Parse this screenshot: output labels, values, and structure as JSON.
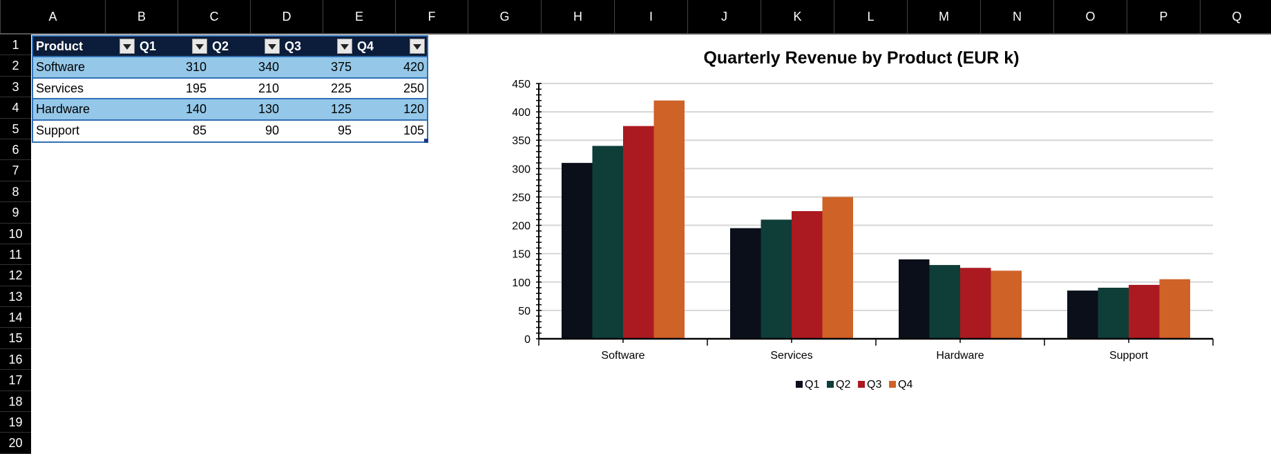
{
  "columns": [
    "A",
    "B",
    "C",
    "D",
    "E",
    "F",
    "G",
    "H",
    "I",
    "J",
    "K",
    "L",
    "M",
    "N",
    "O",
    "P",
    "Q"
  ],
  "rows": [
    "1",
    "2",
    "3",
    "4",
    "5",
    "6",
    "7",
    "8",
    "9",
    "10",
    "11",
    "12",
    "13",
    "14",
    "15",
    "16",
    "17",
    "18",
    "19",
    "20"
  ],
  "table": {
    "headers": [
      "Product",
      "Q1",
      "Q2",
      "Q3",
      "Q4"
    ],
    "rows": [
      [
        "Software",
        "310",
        "340",
        "375",
        "420"
      ],
      [
        "Services",
        "195",
        "210",
        "225",
        "250"
      ],
      [
        "Hardware",
        "140",
        "130",
        "125",
        "120"
      ],
      [
        "Support",
        "85",
        "90",
        "95",
        "105"
      ]
    ],
    "header_color": "#0b1d3a",
    "band_color": "#95c8e8"
  },
  "chart_data": {
    "type": "bar",
    "title": "Quarterly Revenue by Product (EUR k)",
    "categories": [
      "Software",
      "Services",
      "Hardware",
      "Support"
    ],
    "series": [
      {
        "name": "Q1",
        "values": [
          310,
          195,
          140,
          85
        ],
        "color": "#0a0f1a"
      },
      {
        "name": "Q2",
        "values": [
          340,
          210,
          130,
          90
        ],
        "color": "#0f3d38"
      },
      {
        "name": "Q3",
        "values": [
          375,
          225,
          125,
          95
        ],
        "color": "#ab1a20"
      },
      {
        "name": "Q4",
        "values": [
          420,
          250,
          120,
          105
        ],
        "color": "#cf6227"
      }
    ],
    "ylim": [
      0,
      450
    ],
    "yticks": [
      "0",
      "50",
      "100",
      "150",
      "200",
      "250",
      "300",
      "350",
      "400",
      "450"
    ],
    "grid": true,
    "legend": "bottom"
  }
}
